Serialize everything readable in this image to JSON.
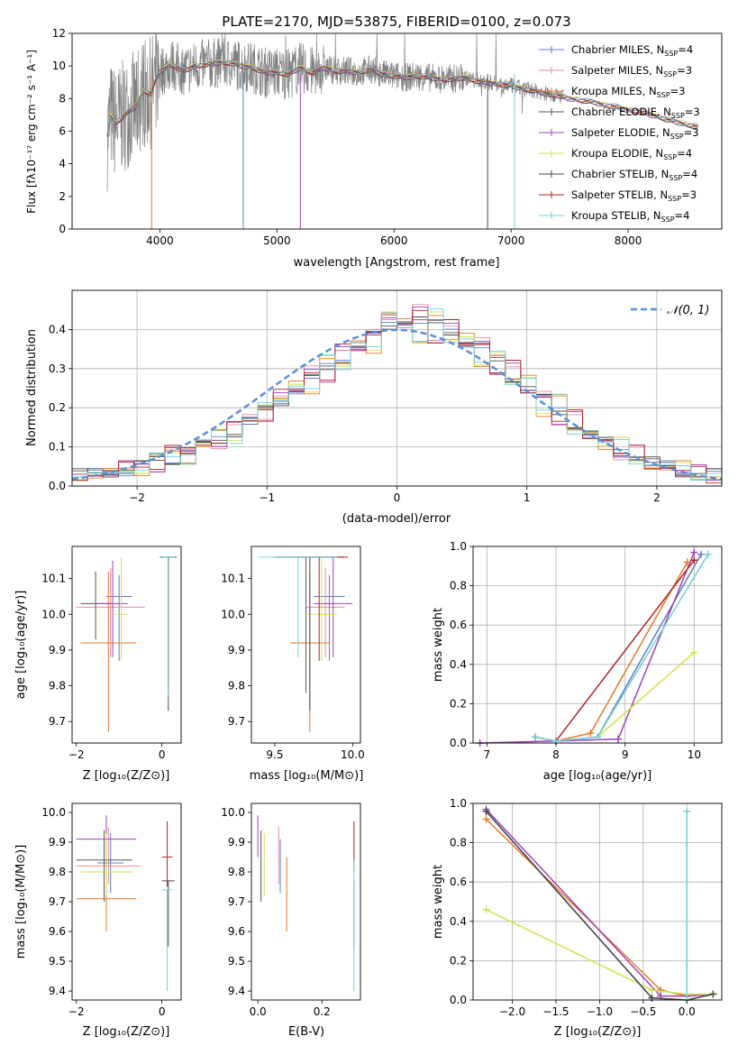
{
  "spectrum": {
    "title": "PLATE=2170, MJD=53875, FIBERID=0100, z=0.073",
    "xlabel": "wavelength [Angstrom, rest frame]",
    "ylabel": "Flux [fλ10⁻¹⁷ erg cm⁻² s⁻¹ A⁻¹]",
    "xticks": [
      "4000",
      "5000",
      "6000",
      "7000",
      "8000"
    ],
    "yticks": [
      "0",
      "2",
      "4",
      "6",
      "8",
      "10",
      "12"
    ],
    "legend": [
      {
        "lib": "Chabrier MILES, N",
        "n": "4"
      },
      {
        "lib": "Salpeter MILES, N",
        "n": "3"
      },
      {
        "lib": "Kroupa MILES, N",
        "n": "3"
      },
      {
        "lib": "Chabrier ELODIE, N",
        "n": "3"
      },
      {
        "lib": "Salpeter ELODIE, N",
        "n": "3"
      },
      {
        "lib": "Kroupa ELODIE, N",
        "n": "4"
      },
      {
        "lib": "Chabrier STELIB, N",
        "n": "4"
      },
      {
        "lib": "Salpeter STELIB, N",
        "n": "3"
      },
      {
        "lib": "Kroupa STELIB, N",
        "n": "4"
      }
    ]
  },
  "residuals": {
    "xlabel": "(data-model)/error",
    "ylabel": "Normed distribution",
    "xticks": [
      "−2",
      "−1",
      "0",
      "1",
      "2"
    ],
    "yticks": [
      "0.0",
      "0.1",
      "0.2",
      "0.3",
      "0.4"
    ],
    "legend_label": "𝒩(0, 1)"
  },
  "age_vs_z": {
    "xlabel": "Z [log₁₀(Z/Z⊙)]",
    "ylabel": "age  [log₁₀(age/yr)]",
    "xticks": [
      "−2",
      "0"
    ],
    "yticks": [
      "9.7",
      "9.8",
      "9.9",
      "10.0",
      "10.1"
    ]
  },
  "age_vs_mass": {
    "xlabel": "mass [log₁₀(M/M⊙)]",
    "xticks": [
      "9.5",
      "10.0"
    ],
    "yticks": [
      "9.7",
      "9.8",
      "9.9",
      "10.0",
      "10.1"
    ]
  },
  "weight_vs_age": {
    "xlabel": "age  [log₁₀(age/yr)]",
    "ylabel": "mass weight",
    "xticks": [
      "7",
      "8",
      "9",
      "10"
    ],
    "yticks": [
      "0.0",
      "0.2",
      "0.4",
      "0.6",
      "0.8",
      "1.0"
    ]
  },
  "mass_vs_z": {
    "xlabel": "Z [log₁₀(Z/Z⊙)]",
    "ylabel": "mass [log₁₀(M/M⊙)]",
    "xticks": [
      "−2",
      "0"
    ],
    "yticks": [
      "9.4",
      "9.5",
      "9.6",
      "9.7",
      "9.8",
      "9.9",
      "10.0"
    ]
  },
  "mass_vs_ebv": {
    "xlabel": "E(B-V)",
    "xticks": [
      "0.0",
      "0.2"
    ],
    "yticks": [
      "9.4",
      "9.5",
      "9.6",
      "9.7",
      "9.8",
      "9.9",
      "10.0"
    ]
  },
  "weight_vs_z": {
    "xlabel": "Z [log₁₀(Z/Z⊙)]",
    "ylabel": "mass weight",
    "xticks": [
      "−2.0",
      "−1.5",
      "−1.0",
      "−0.5",
      "0.0"
    ],
    "yticks": [
      "0.0",
      "0.2",
      "0.4",
      "0.6",
      "0.8",
      "1.0"
    ]
  },
  "chart_data": [
    {
      "type": "line",
      "panel": "spectrum",
      "xlim": [
        3250,
        8800
      ],
      "ylim": [
        0,
        12
      ],
      "colors": [
        "#5b7fc8",
        "#e88aa5",
        "#e8772a",
        "#555555",
        "#a040b8",
        "#d2e24a",
        "#4a4a4a",
        "#b22222",
        "#6fd0d8"
      ],
      "data_color": "#808080",
      "x": [
        3550,
        3580,
        3620,
        3700,
        3800,
        3860,
        3920,
        3990,
        4100,
        4200,
        4300,
        4400,
        4500,
        4600,
        4700,
        4800,
        4900,
        5000,
        5100,
        5200,
        5300,
        5400,
        5500,
        5600,
        5700,
        5800,
        5900,
        6000,
        6100,
        6200,
        6300,
        6400,
        6500,
        6600,
        6700,
        6800,
        6900,
        7000,
        7100,
        7200,
        7300,
        7400,
        7500,
        7600,
        7700,
        7800,
        7900,
        8000,
        8100,
        8200,
        8300,
        8400,
        8500,
        8600
      ],
      "model": [
        5.8,
        6.9,
        6.5,
        7.0,
        7.6,
        8.5,
        8.3,
        9.6,
        10.1,
        9.7,
        10.0,
        10.1,
        10.2,
        10.2,
        10.0,
        9.9,
        9.6,
        9.6,
        9.5,
        9.9,
        9.6,
        9.9,
        9.7,
        9.7,
        9.6,
        9.8,
        9.5,
        9.4,
        9.3,
        9.4,
        9.3,
        9.2,
        9.2,
        9.3,
        9.1,
        9.0,
        8.9,
        8.8,
        8.6,
        8.5,
        8.3,
        8.2,
        8.0,
        7.9,
        7.8,
        7.6,
        7.5,
        7.3,
        7.2,
        7.0,
        6.8,
        6.6,
        6.4,
        6.3
      ]
    },
    {
      "type": "step",
      "panel": "residuals",
      "xlim": [
        -2.5,
        2.5
      ],
      "ylim": [
        0,
        0.5
      ],
      "series": [
        {
          "values": [
            0.03,
            0.03,
            0.04,
            0.04,
            0.05,
            0.07,
            0.07,
            0.09,
            0.1,
            0.12,
            0.14,
            0.16,
            0.19,
            0.22,
            0.25,
            0.27,
            0.3,
            0.33,
            0.36,
            0.38,
            0.41,
            0.43,
            0.42,
            0.41,
            0.4,
            0.37,
            0.35,
            0.32,
            0.28,
            0.25,
            0.22,
            0.19,
            0.16,
            0.13,
            0.11,
            0.09,
            0.08,
            0.06,
            0.05,
            0.04,
            0.03,
            0.03
          ]
        },
        {
          "values": [
            0.02,
            0.04,
            0.03,
            0.05,
            0.06,
            0.05,
            0.09,
            0.08,
            0.12,
            0.11,
            0.15,
            0.17,
            0.18,
            0.24,
            0.23,
            0.3,
            0.28,
            0.35,
            0.34,
            0.4,
            0.44,
            0.4,
            0.45,
            0.38,
            0.42,
            0.35,
            0.37,
            0.3,
            0.31,
            0.23,
            0.24,
            0.17,
            0.18,
            0.12,
            0.13,
            0.08,
            0.09,
            0.05,
            0.06,
            0.03,
            0.04,
            0.02
          ]
        },
        {
          "values": [
            0.03,
            0.02,
            0.03,
            0.05,
            0.04,
            0.07,
            0.08,
            0.07,
            0.11,
            0.13,
            0.12,
            0.18,
            0.2,
            0.21,
            0.27,
            0.25,
            0.32,
            0.3,
            0.38,
            0.35,
            0.43,
            0.42,
            0.38,
            0.44,
            0.36,
            0.39,
            0.32,
            0.33,
            0.26,
            0.29,
            0.19,
            0.22,
            0.14,
            0.15,
            0.1,
            0.11,
            0.07,
            0.06,
            0.04,
            0.05,
            0.03,
            0.03
          ]
        }
      ]
    },
    {
      "type": "scatter",
      "panel": "age_vs_z",
      "xlim": [
        -2.1,
        0.45
      ],
      "ylim": [
        9.64,
        10.19
      ]
    },
    {
      "type": "scatter",
      "panel": "age_vs_mass",
      "xlim": [
        9.35,
        10.05
      ],
      "ylim": [
        9.64,
        10.19
      ]
    },
    {
      "type": "line",
      "panel": "weight_vs_age",
      "xlim": [
        6.8,
        10.4
      ],
      "ylim": [
        0,
        1
      ],
      "series": [
        {
          "color": "#5b7fc8",
          "x": [
            7.7,
            8.0,
            8.6,
            10.1
          ],
          "y": [
            0.03,
            0.01,
            0.03,
            0.96
          ]
        },
        {
          "color": "#e8772a",
          "x": [
            7.7,
            8.0,
            8.5,
            9.9
          ],
          "y": [
            0.03,
            0.01,
            0.05,
            0.92
          ]
        },
        {
          "color": "#a040b8",
          "x": [
            6.9,
            8.0,
            8.9,
            10.0
          ],
          "y": [
            0.0,
            0.01,
            0.02,
            0.97
          ]
        },
        {
          "color": "#d2e24a",
          "x": [
            8.6,
            10.0
          ],
          "y": [
            0.03,
            0.46
          ]
        },
        {
          "color": "#b22222",
          "x": [
            8.0,
            10.0
          ],
          "y": [
            0.01,
            0.93
          ]
        },
        {
          "color": "#6fd0d8",
          "x": [
            7.7,
            8.0,
            8.6,
            10.2
          ],
          "y": [
            0.03,
            0.01,
            0.03,
            0.96
          ]
        }
      ]
    },
    {
      "type": "scatter",
      "panel": "mass_vs_z",
      "xlim": [
        -2.1,
        0.45
      ],
      "ylim": [
        9.37,
        10.03
      ]
    },
    {
      "type": "scatter",
      "panel": "mass_vs_ebv",
      "xlim": [
        -0.02,
        0.32
      ],
      "ylim": [
        9.37,
        10.03
      ]
    },
    {
      "type": "line",
      "panel": "weight_vs_z",
      "xlim": [
        -2.45,
        0.4
      ],
      "ylim": [
        0,
        1
      ],
      "series": [
        {
          "color": "#5b7fc8",
          "x": [
            -2.3,
            -0.4,
            0.0,
            0.3
          ],
          "y": [
            0.96,
            0.01,
            0.0,
            0.03
          ]
        },
        {
          "color": "#e8772a",
          "x": [
            -2.3,
            -0.3,
            0.0,
            0.3
          ],
          "y": [
            0.92,
            0.05,
            0.02,
            0.03
          ]
        },
        {
          "color": "#a040b8",
          "x": [
            -2.3,
            -0.3,
            0.0,
            0.3
          ],
          "y": [
            0.97,
            0.02,
            0.02,
            0.03
          ]
        },
        {
          "color": "#d2e24a",
          "x": [
            -2.3,
            -0.4,
            0.0,
            0.3
          ],
          "y": [
            0.46,
            0.05,
            0.03,
            0.03
          ]
        },
        {
          "color": "#4a4a4a",
          "x": [
            -2.3,
            -0.4,
            0.0,
            0.3
          ],
          "y": [
            0.96,
            0.01,
            0.0,
            0.03
          ]
        },
        {
          "color": "#6fd0d8",
          "x": [
            0.0,
            0.0
          ],
          "y": [
            0.0,
            0.96
          ]
        }
      ]
    }
  ]
}
